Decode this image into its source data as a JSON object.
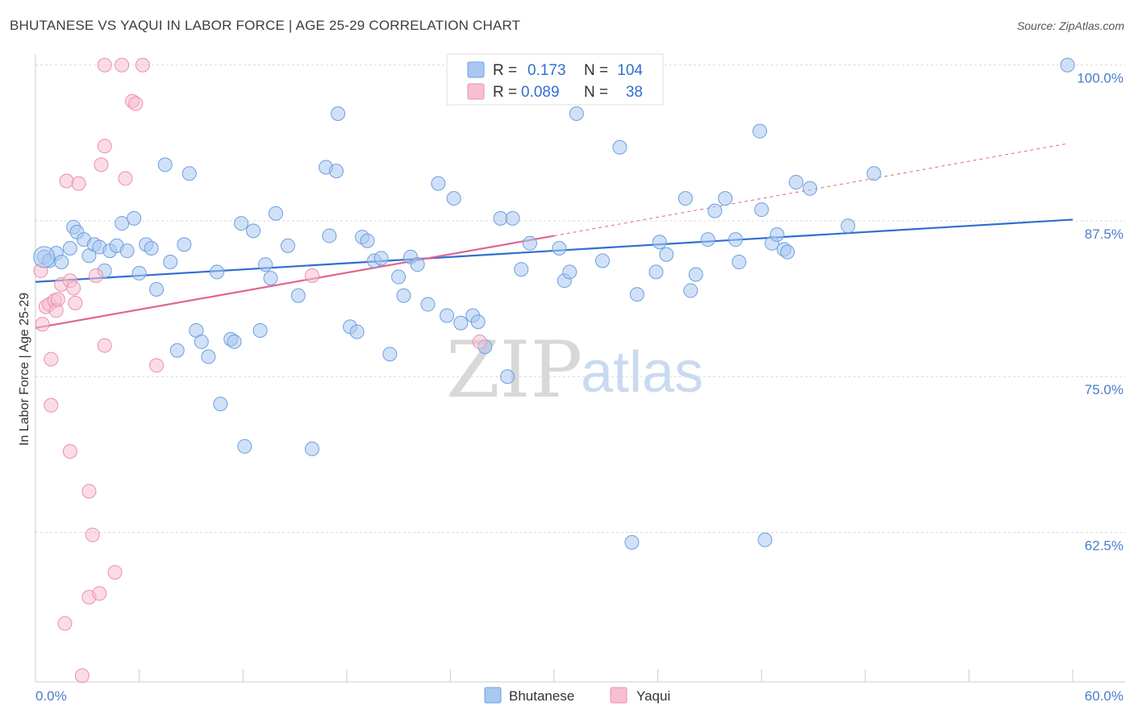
{
  "title": "BHUTANESE VS YAQUI IN LABOR FORCE | AGE 25-29 CORRELATION CHART",
  "source": "Source: ZipAtlas.com",
  "watermark": {
    "zip": "ZIP",
    "atlas": "atlas"
  },
  "legend_top": {
    "rows": [
      {
        "r_label": "R =",
        "r_value": "0.173",
        "n_label": "N =",
        "n_value": "104",
        "color": "#a9c8f0",
        "stroke": "#6d9ee0"
      },
      {
        "r_label": "R =",
        "r_value": "0.089",
        "n_label": "N =",
        "n_value": "38",
        "color": "#f7bfd0",
        "stroke": "#ea8fae"
      }
    ]
  },
  "legend_bottom": [
    {
      "label": "Bhutanese",
      "color": "#a9c8f0",
      "stroke": "#6d9ee0"
    },
    {
      "label": "Yaqui",
      "color": "#f7bfd0",
      "stroke": "#ea8fae"
    }
  ],
  "chart_data": {
    "type": "scatter",
    "ylabel": "In Labor Force | Age 25-29",
    "xlim": [
      0,
      60
    ],
    "ylim": [
      50.5,
      100.5
    ],
    "x_tick_labels": [
      "0.0%",
      "60.0%"
    ],
    "y_ticks": [
      62.5,
      75.0,
      87.5,
      100.0
    ],
    "y_tick_labels": [
      "62.5%",
      "75.0%",
      "87.5%",
      "100.0%"
    ],
    "grid": true,
    "series": [
      {
        "name": "Bhutanese",
        "color": "#6d9ee0",
        "fill": "#a9c8f0",
        "trend": {
          "x": [
            0,
            60
          ],
          "y": [
            82.6,
            87.6
          ],
          "color": "#2f6fcf"
        },
        "points": [
          [
            0.5,
            84.6
          ],
          [
            0.8,
            84.3
          ],
          [
            1.2,
            84.9
          ],
          [
            1.5,
            84.2
          ],
          [
            2.0,
            85.3
          ],
          [
            2.2,
            87.0
          ],
          [
            2.4,
            86.6
          ],
          [
            2.8,
            86.0
          ],
          [
            3.1,
            84.7
          ],
          [
            3.4,
            85.6
          ],
          [
            3.7,
            85.4
          ],
          [
            4.0,
            83.5
          ],
          [
            4.3,
            85.1
          ],
          [
            4.7,
            85.5
          ],
          [
            5.0,
            87.3
          ],
          [
            5.3,
            85.1
          ],
          [
            5.7,
            87.7
          ],
          [
            6.0,
            83.3
          ],
          [
            6.4,
            85.6
          ],
          [
            6.7,
            85.3
          ],
          [
            7.0,
            82.0
          ],
          [
            7.5,
            92.0
          ],
          [
            7.8,
            84.2
          ],
          [
            8.2,
            77.1
          ],
          [
            8.6,
            85.6
          ],
          [
            8.9,
            91.3
          ],
          [
            9.3,
            78.7
          ],
          [
            9.6,
            77.8
          ],
          [
            10.0,
            76.6
          ],
          [
            10.5,
            83.4
          ],
          [
            10.7,
            72.8
          ],
          [
            11.3,
            78.0
          ],
          [
            11.5,
            77.8
          ],
          [
            11.9,
            87.3
          ],
          [
            12.1,
            69.4
          ],
          [
            12.6,
            86.7
          ],
          [
            13.0,
            78.7
          ],
          [
            13.3,
            84.0
          ],
          [
            13.6,
            82.9
          ],
          [
            13.9,
            88.1
          ],
          [
            14.6,
            85.5
          ],
          [
            15.2,
            81.5
          ],
          [
            16.0,
            69.2
          ],
          [
            16.8,
            91.8
          ],
          [
            17.0,
            86.3
          ],
          [
            17.4,
            91.5
          ],
          [
            17.5,
            96.1
          ],
          [
            18.2,
            79.0
          ],
          [
            18.6,
            78.6
          ],
          [
            18.9,
            86.2
          ],
          [
            19.2,
            85.9
          ],
          [
            19.6,
            84.3
          ],
          [
            20.0,
            84.5
          ],
          [
            20.5,
            76.8
          ],
          [
            21.0,
            83.0
          ],
          [
            21.3,
            81.5
          ],
          [
            21.7,
            84.6
          ],
          [
            22.1,
            84.0
          ],
          [
            22.7,
            80.8
          ],
          [
            23.3,
            90.5
          ],
          [
            23.8,
            79.9
          ],
          [
            24.2,
            89.3
          ],
          [
            24.6,
            79.3
          ],
          [
            25.3,
            79.9
          ],
          [
            25.6,
            79.4
          ],
          [
            26.0,
            77.4
          ],
          [
            26.9,
            87.7
          ],
          [
            27.3,
            75.0
          ],
          [
            27.6,
            87.7
          ],
          [
            28.1,
            83.6
          ],
          [
            28.6,
            85.7
          ],
          [
            30.3,
            85.3
          ],
          [
            30.6,
            82.7
          ],
          [
            30.9,
            83.4
          ],
          [
            31.3,
            96.1
          ],
          [
            32.8,
            84.3
          ],
          [
            33.8,
            93.4
          ],
          [
            34.5,
            61.7
          ],
          [
            34.8,
            81.6
          ],
          [
            35.9,
            83.4
          ],
          [
            36.1,
            85.8
          ],
          [
            36.5,
            84.8
          ],
          [
            37.6,
            89.3
          ],
          [
            37.9,
            81.9
          ],
          [
            38.2,
            83.2
          ],
          [
            38.9,
            86.0
          ],
          [
            39.3,
            88.3
          ],
          [
            39.9,
            89.3
          ],
          [
            40.5,
            86.0
          ],
          [
            40.7,
            84.2
          ],
          [
            41.9,
            94.7
          ],
          [
            42.0,
            88.4
          ],
          [
            42.2,
            61.9
          ],
          [
            42.6,
            85.7
          ],
          [
            42.9,
            86.4
          ],
          [
            43.3,
            85.2
          ],
          [
            43.5,
            85.0
          ],
          [
            44.0,
            90.6
          ],
          [
            44.8,
            90.1
          ],
          [
            47.0,
            87.1
          ],
          [
            48.5,
            91.3
          ],
          [
            59.7,
            100.0
          ]
        ]
      },
      {
        "name": "Yaqui",
        "color": "#ea8fae",
        "fill": "#f7bfd0",
        "trend": {
          "x": [
            0,
            30
          ],
          "y": [
            78.9,
            86.3
          ],
          "color": "#e0658f",
          "dashed_to": {
            "x": 59.7,
            "y": 93.7
          }
        },
        "points": [
          [
            0.3,
            83.5
          ],
          [
            0.4,
            79.2
          ],
          [
            0.6,
            80.6
          ],
          [
            0.8,
            80.8
          ],
          [
            0.9,
            76.4
          ],
          [
            0.9,
            72.7
          ],
          [
            1.1,
            81.1
          ],
          [
            1.2,
            80.3
          ],
          [
            1.3,
            81.2
          ],
          [
            1.5,
            82.4
          ],
          [
            1.7,
            55.2
          ],
          [
            1.8,
            90.7
          ],
          [
            2.0,
            82.7
          ],
          [
            2.0,
            69.0
          ],
          [
            2.2,
            82.1
          ],
          [
            2.3,
            80.9
          ],
          [
            2.5,
            90.5
          ],
          [
            2.7,
            51.0
          ],
          [
            3.1,
            57.3
          ],
          [
            3.1,
            65.8
          ],
          [
            3.3,
            62.3
          ],
          [
            3.5,
            83.1
          ],
          [
            3.7,
            57.6
          ],
          [
            3.8,
            92.0
          ],
          [
            4.0,
            100.0
          ],
          [
            4.0,
            93.5
          ],
          [
            4.0,
            77.5
          ],
          [
            4.6,
            59.3
          ],
          [
            5.0,
            100.0
          ],
          [
            5.2,
            90.9
          ],
          [
            5.6,
            97.1
          ],
          [
            5.8,
            96.9
          ],
          [
            6.2,
            100.0
          ],
          [
            7.0,
            75.9
          ],
          [
            16.0,
            83.1
          ],
          [
            25.7,
            77.8
          ]
        ]
      }
    ]
  }
}
